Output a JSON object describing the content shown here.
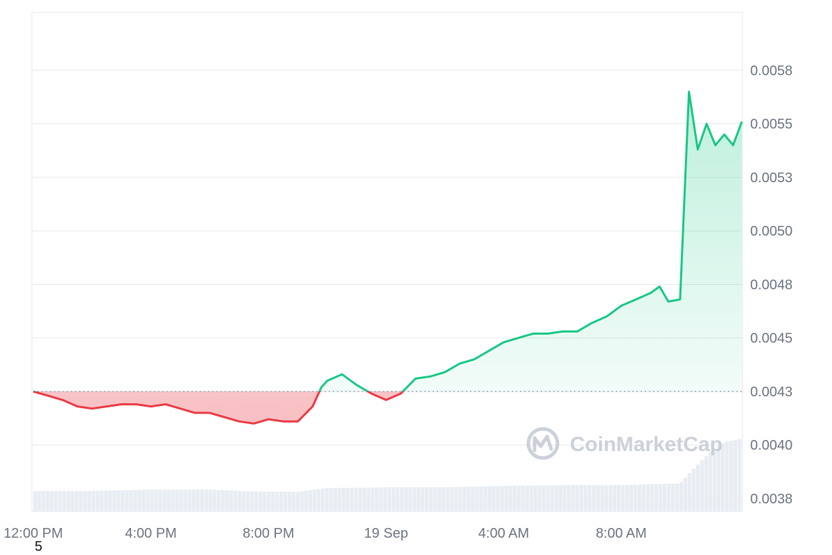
{
  "watermark": {
    "text": "CoinMarketCap"
  },
  "footnote": "5",
  "colors": {
    "up": "#16c784",
    "down": "#ea3943",
    "grid": "#e5e7eb",
    "label": "#6b7280",
    "volume": "#e8edf3"
  },
  "chart_data": {
    "type": "line",
    "xlabel": "",
    "ylabel": "",
    "x_tick_labels": [
      "12:00 PM",
      "4:00 PM",
      "8:00 PM",
      "19 Sep",
      "4:00 AM",
      "8:00 AM"
    ],
    "x_tick_hours": [
      0,
      4,
      8,
      12,
      16,
      20
    ],
    "y_tick_labels": [
      "0.0058",
      "0.0055",
      "0.0053",
      "0.0050",
      "0.0048",
      "0.0045",
      "0.0043",
      "0.0040",
      "0.0038"
    ],
    "y_ticks": [
      0.00575,
      0.0055,
      0.00525,
      0.005,
      0.00475,
      0.0045,
      0.00425,
      0.004,
      0.00375
    ],
    "ylim": [
      0.00369,
      0.00602
    ],
    "xlim_hours": [
      0,
      24.1
    ],
    "baseline": 0.00425,
    "grid": true,
    "series": [
      {
        "x_hours": [
          0,
          0.5,
          1,
          1.5,
          2,
          2.5,
          3,
          3.5,
          4,
          4.5,
          5,
          5.5,
          6,
          6.5,
          7,
          7.5,
          8,
          8.5,
          9,
          9.5,
          9.8,
          10,
          10.5,
          11,
          11.5,
          12,
          12.5,
          13,
          13.5,
          14,
          14.5,
          15,
          15.5,
          16,
          16.5,
          17,
          17.5,
          18,
          18.5,
          19,
          19.5,
          20,
          20.5,
          21,
          21.3,
          21.6,
          22,
          22.3,
          22.6,
          22.9,
          23.2,
          23.5,
          23.8,
          24.1
        ],
        "values": [
          0.00425,
          0.00423,
          0.00421,
          0.00418,
          0.00417,
          0.00418,
          0.00419,
          0.00419,
          0.00418,
          0.00419,
          0.00417,
          0.00415,
          0.00415,
          0.00413,
          0.00411,
          0.0041,
          0.00412,
          0.00411,
          0.00411,
          0.00418,
          0.00427,
          0.0043,
          0.00433,
          0.00428,
          0.00424,
          0.00421,
          0.00424,
          0.00431,
          0.00432,
          0.00434,
          0.00438,
          0.0044,
          0.00444,
          0.00448,
          0.0045,
          0.00452,
          0.00452,
          0.00453,
          0.00453,
          0.00457,
          0.0046,
          0.00465,
          0.00468,
          0.00471,
          0.00474,
          0.00467,
          0.00468,
          0.00565,
          0.00538,
          0.0055,
          0.0054,
          0.00545,
          0.0054,
          0.00551
        ]
      }
    ],
    "volume": {
      "x_hours": [
        0,
        2,
        4,
        6,
        7,
        8,
        9,
        10,
        12,
        14,
        16,
        18,
        20,
        21.5,
        22,
        22.5,
        23,
        23.5,
        24.1
      ],
      "values": [
        28,
        28,
        30,
        30,
        28,
        27,
        27,
        32,
        33,
        33,
        35,
        36,
        36,
        38,
        38,
        60,
        80,
        95,
        100
      ]
    }
  }
}
